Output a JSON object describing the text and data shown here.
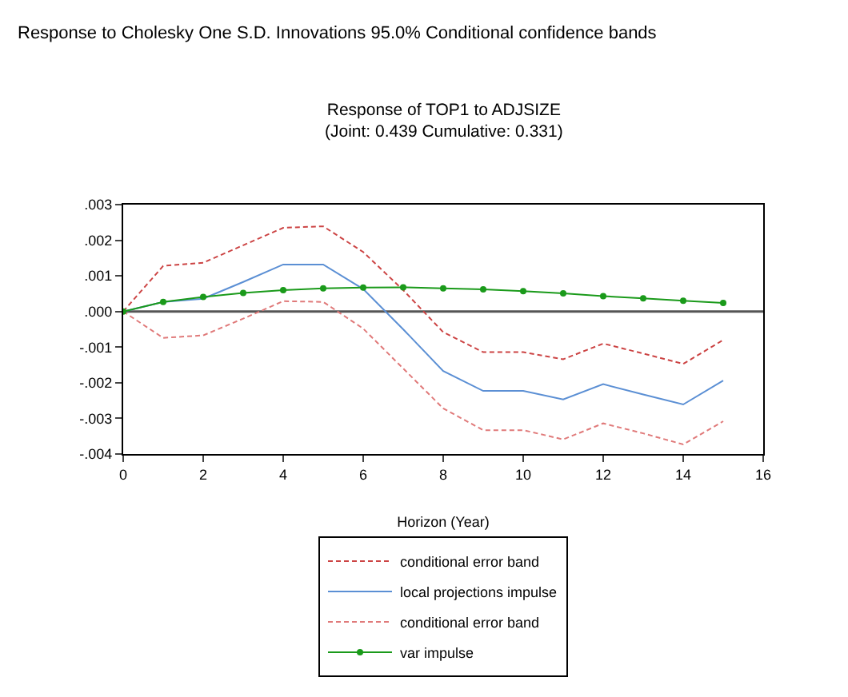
{
  "chart_data": {
    "type": "line",
    "title": "Response to Cholesky One S.D. Innovations 95.0% Conditional confidence bands",
    "subtitle": "Response of TOP1 to ADJSIZE\n(Joint: 0.439 Cumulative: 0.331)",
    "xlabel": "Horizon (Year)",
    "x": [
      0,
      1,
      2,
      3,
      4,
      5,
      6,
      7,
      8,
      9,
      10,
      11,
      12,
      13,
      14,
      15
    ],
    "series": [
      {
        "name": "conditional error band",
        "color": "#cc4444",
        "line_style": "dashed",
        "marker": "none",
        "values": [
          0,
          0.00128,
          0.00137,
          0.00186,
          0.00235,
          0.00239,
          0.00167,
          0.0006,
          -0.00058,
          -0.00114,
          -0.00114,
          -0.00134,
          -0.0009,
          -0.00118,
          -0.00147,
          -0.0008
        ]
      },
      {
        "name": "local projections impulse",
        "color": "#5b8fd4",
        "line_style": "solid",
        "marker": "none",
        "values": [
          0,
          0.00027,
          0.00036,
          0.00083,
          0.00132,
          0.00132,
          0.00063,
          -0.0005,
          -0.00167,
          -0.00223,
          -0.00223,
          -0.00247,
          -0.00204,
          -0.00233,
          -0.00261,
          -0.00194
        ]
      },
      {
        "name": "conditional error band",
        "color": "#e07a7a",
        "line_style": "dashed",
        "marker": "none",
        "values": [
          0,
          -0.00074,
          -0.00067,
          -0.0002,
          0.00029,
          0.00027,
          -0.00048,
          -0.0016,
          -0.00272,
          -0.00333,
          -0.00333,
          -0.00359,
          -0.00314,
          -0.00342,
          -0.00373,
          -0.00308
        ]
      },
      {
        "name": "var impulse",
        "color": "#1a9a1a",
        "line_style": "solid",
        "marker": "circle",
        "values": [
          0,
          0.00027,
          0.00041,
          0.00052,
          0.0006,
          0.00065,
          0.00067,
          0.00068,
          0.00065,
          0.00062,
          0.00057,
          0.00051,
          0.00043,
          0.00037,
          0.0003,
          0.00024
        ]
      }
    ],
    "xlim": [
      0,
      16
    ],
    "xticks": [
      0,
      2,
      4,
      6,
      8,
      10,
      12,
      14,
      16
    ],
    "ylim": [
      -0.004,
      0.003
    ],
    "yticks": [
      {
        "value": -0.004,
        "label": "-.004"
      },
      {
        "value": -0.003,
        "label": "-.003"
      },
      {
        "value": -0.002,
        "label": "-.002"
      },
      {
        "value": -0.001,
        "label": "-.001"
      },
      {
        "value": 0,
        "label": ".000"
      },
      {
        "value": 0.001,
        "label": ".001"
      },
      {
        "value": 0.002,
        "label": ".002"
      },
      {
        "value": 0.003,
        "label": ".003"
      }
    ],
    "ref_lines": [
      {
        "axis": "y",
        "value": 0,
        "color": "#555555"
      }
    ],
    "grid": false,
    "legend": "bottom"
  }
}
